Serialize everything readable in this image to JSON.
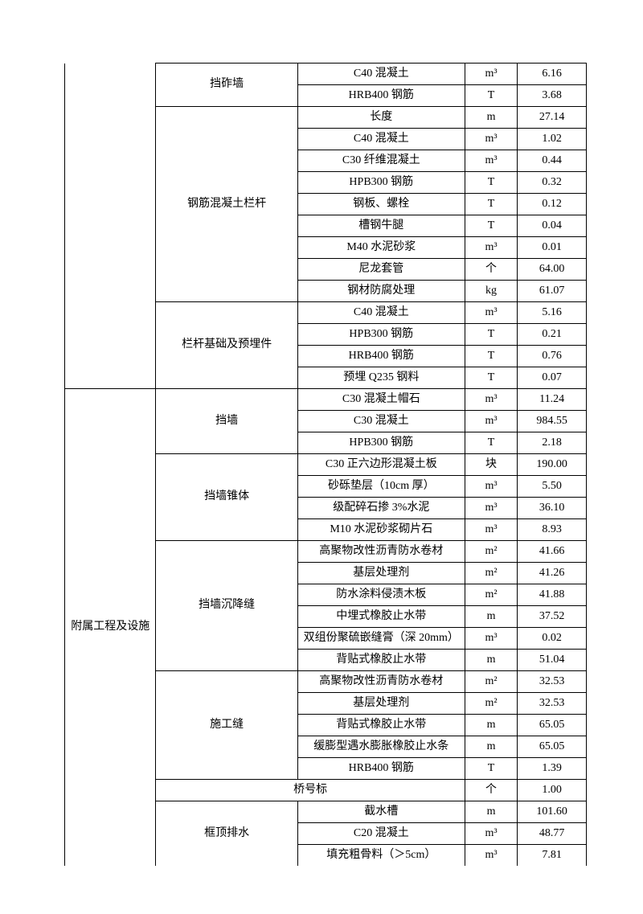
{
  "table": {
    "col1_group_top": "",
    "col1_group_main": "附属工程及设施",
    "col2_groups": [
      {
        "label": "挡砟墙",
        "rows": [
          {
            "item": "C40 混凝土",
            "unit": "m³",
            "qty": "6.16"
          },
          {
            "item": "HRB400 钢筋",
            "unit": "T",
            "qty": "3.68"
          }
        ]
      },
      {
        "label": "钢筋混凝土栏杆",
        "rows": [
          {
            "item": "长度",
            "unit": "m",
            "qty": "27.14"
          },
          {
            "item": "C40 混凝土",
            "unit": "m³",
            "qty": "1.02"
          },
          {
            "item": "C30 纤维混凝土",
            "unit": "m³",
            "qty": "0.44"
          },
          {
            "item": "HPB300 钢筋",
            "unit": "T",
            "qty": "0.32"
          },
          {
            "item": "钢板、螺栓",
            "unit": "T",
            "qty": "0.12"
          },
          {
            "item": "槽钢牛腿",
            "unit": "T",
            "qty": "0.04"
          },
          {
            "item": "M40 水泥砂浆",
            "unit": "m³",
            "qty": "0.01"
          },
          {
            "item": "尼龙套管",
            "unit": "个",
            "qty": "64.00"
          },
          {
            "item": "钢材防腐处理",
            "unit": "kg",
            "qty": "61.07"
          }
        ]
      },
      {
        "label": "栏杆基础及预埋件",
        "rows": [
          {
            "item": "C40 混凝土",
            "unit": "m³",
            "qty": "5.16"
          },
          {
            "item": "HPB300 钢筋",
            "unit": "T",
            "qty": "0.21"
          },
          {
            "item": "HRB400 钢筋",
            "unit": "T",
            "qty": "0.76"
          },
          {
            "item": "预埋 Q235 钢料",
            "unit": "T",
            "qty": "0.07"
          }
        ]
      },
      {
        "label": "挡墙",
        "rows": [
          {
            "item": "C30 混凝土帽石",
            "unit": "m³",
            "qty": "11.24"
          },
          {
            "item": "C30 混凝土",
            "unit": "m³",
            "qty": "984.55"
          },
          {
            "item": "HPB300 钢筋",
            "unit": "T",
            "qty": "2.18"
          }
        ]
      },
      {
        "label": "挡墙锥体",
        "rows": [
          {
            "item": "C30 正六边形混凝土板",
            "unit": "块",
            "qty": "190.00"
          },
          {
            "item": "砂砾垫层（10cm 厚）",
            "unit": "m³",
            "qty": "5.50"
          },
          {
            "item": "级配碎石掺 3%水泥",
            "unit": "m³",
            "qty": "36.10"
          },
          {
            "item": "M10 水泥砂浆砌片石",
            "unit": "m³",
            "qty": "8.93"
          }
        ]
      },
      {
        "label": "挡墙沉降缝",
        "rows": [
          {
            "item": "高聚物改性沥青防水卷材",
            "unit": "m²",
            "qty": "41.66"
          },
          {
            "item": "基层处理剂",
            "unit": "m²",
            "qty": "41.26"
          },
          {
            "item": "防水涂料侵渍木板",
            "unit": "m²",
            "qty": "41.88"
          },
          {
            "item": "中埋式橡胶止水带",
            "unit": "m",
            "qty": "37.52"
          },
          {
            "item": "双组份聚硫嵌缝膏（深 20mm）",
            "unit": "m³",
            "qty": "0.02"
          },
          {
            "item": "背贴式橡胶止水带",
            "unit": "m",
            "qty": "51.04"
          }
        ]
      },
      {
        "label": "施工缝",
        "rows": [
          {
            "item": "高聚物改性沥青防水卷材",
            "unit": "m²",
            "qty": "32.53"
          },
          {
            "item": "基层处理剂",
            "unit": "m²",
            "qty": "32.53"
          },
          {
            "item": "背贴式橡胶止水带",
            "unit": "m",
            "qty": "65.05"
          },
          {
            "item": "缓膨型遇水膨胀橡胶止水条",
            "unit": "m",
            "qty": "65.05"
          },
          {
            "item": "HRB400 钢筋",
            "unit": "T",
            "qty": "1.39"
          }
        ]
      },
      {
        "label": "桥号标",
        "span3": true,
        "unit": "个",
        "qty": "1.00"
      },
      {
        "label": "框顶排水",
        "rows": [
          {
            "item": "截水槽",
            "unit": "m",
            "qty": "101.60"
          },
          {
            "item": "C20 混凝土",
            "unit": "m³",
            "qty": "48.77"
          },
          {
            "item": "填充粗骨料（＞5cm）",
            "unit": "m³",
            "qty": "7.81"
          }
        ]
      }
    ]
  }
}
